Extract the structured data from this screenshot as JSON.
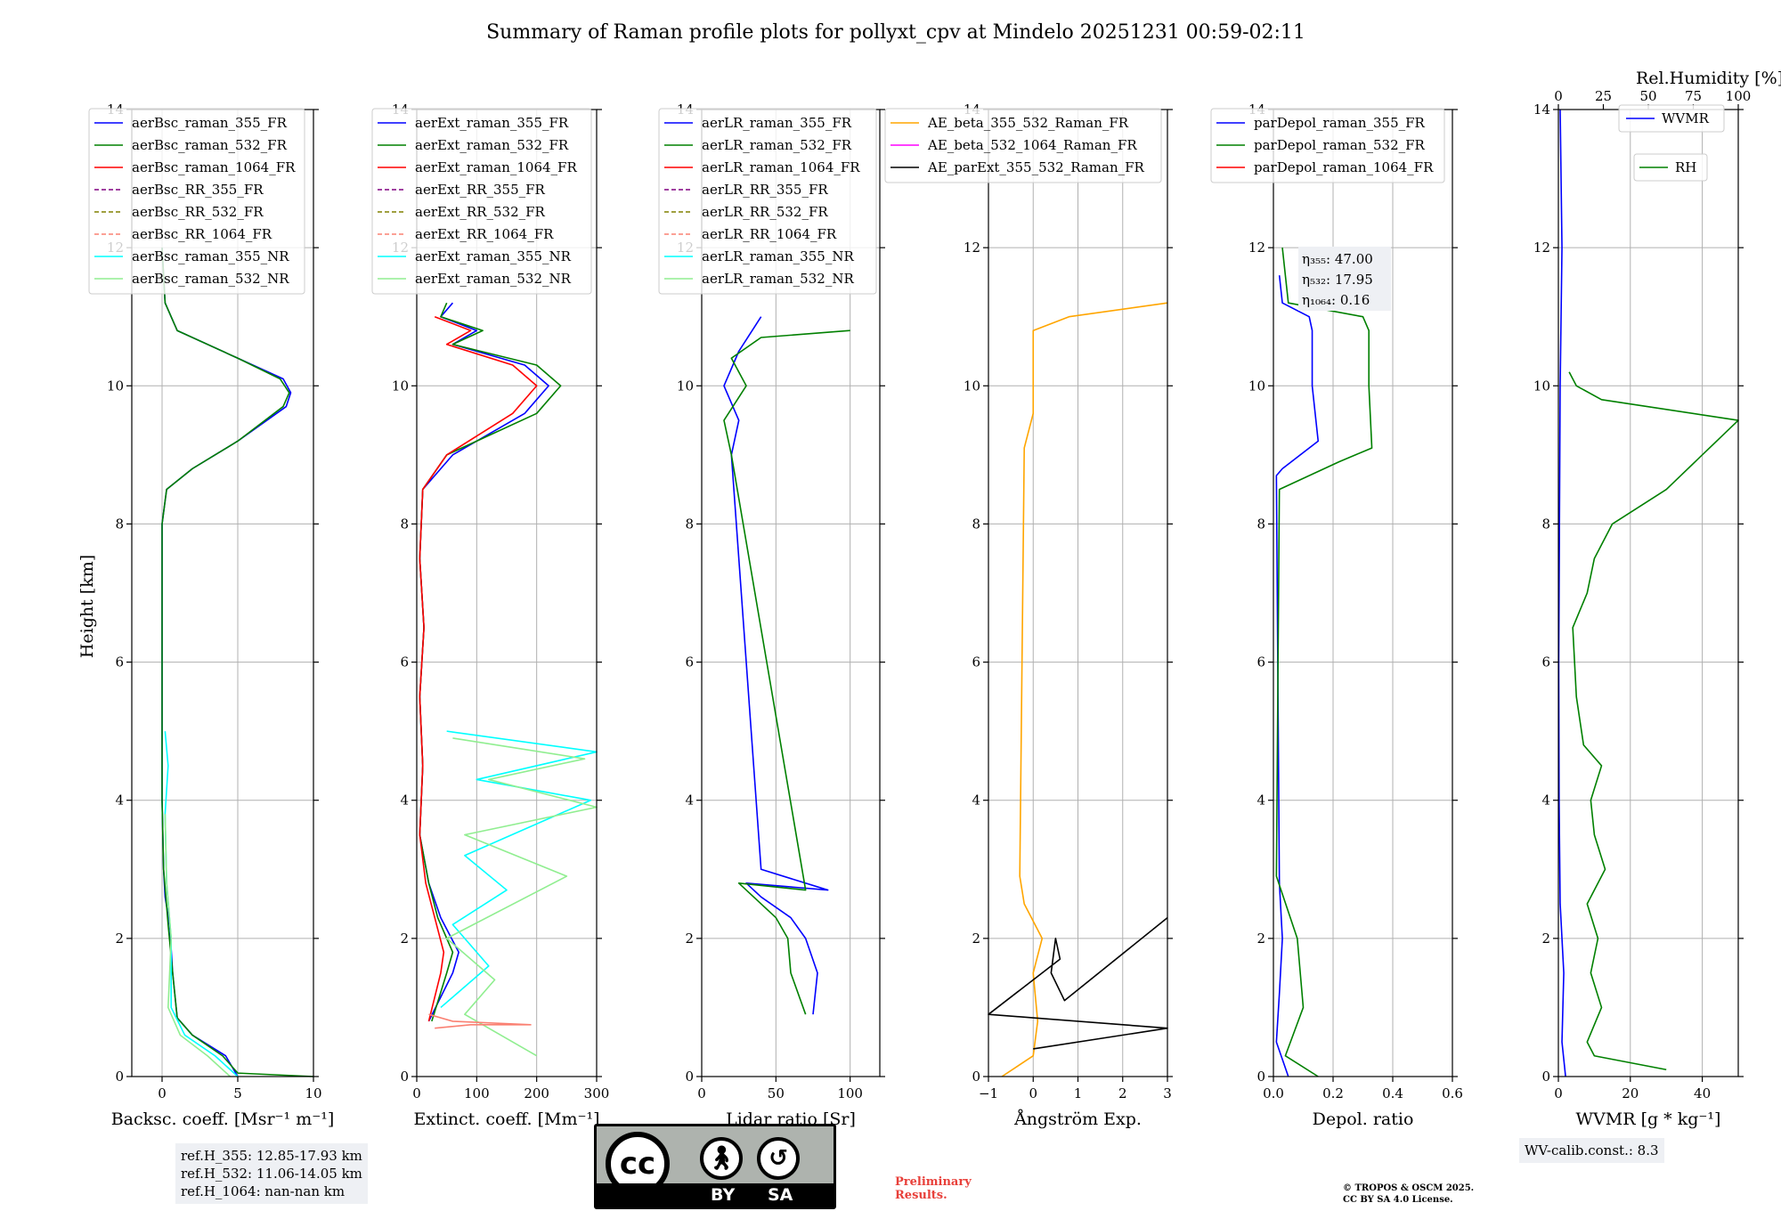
{
  "title": "Summary of Raman profile plots for pollyxt_cpv at Mindelo 20251231 00:59-02:11",
  "y_axis_label": "Height [km]",
  "rh_axis_label": "Rel.Humidity [%]",
  "chart_data": [
    {
      "type": "line",
      "xlabel": "Backsc. coeff. [Msr⁻¹ m⁻¹]",
      "xlim": [
        -2,
        10
      ],
      "ylim": [
        0,
        14
      ],
      "xticks": [
        0,
        5,
        10
      ],
      "yticks": [
        0,
        2,
        4,
        6,
        8,
        10,
        12,
        14
      ],
      "legend": [
        "aerBsc_raman_355_FR",
        "aerBsc_raman_532_FR",
        "aerBsc_raman_1064_FR",
        "aerBsc_RR_355_FR",
        "aerBsc_RR_532_FR",
        "aerBsc_RR_1064_FR",
        "aerBsc_raman_355_NR",
        "aerBsc_raman_532_NR"
      ],
      "series": [
        {
          "name": "aerBsc_raman_355_FR",
          "color": "#0000ff",
          "x": [
            5,
            4.2,
            2,
            1,
            0.7,
            0.5,
            0.2,
            0.1,
            0,
            0,
            0,
            0.3,
            2,
            5,
            8.2,
            8.5,
            8,
            5,
            1,
            0.2,
            0
          ],
          "y": [
            0,
            0.3,
            0.6,
            0.85,
            1.5,
            2.2,
            2.6,
            3,
            4,
            6,
            8,
            8.5,
            8.8,
            9.2,
            9.7,
            9.9,
            10.1,
            10.4,
            10.8,
            11.2,
            12
          ]
        },
        {
          "name": "aerBsc_raman_532_FR",
          "color": "#008000",
          "x": [
            10,
            5,
            4,
            2,
            1,
            0.7,
            0.4,
            0.1,
            0,
            0,
            0,
            0.3,
            2,
            5,
            8,
            8.4,
            7.8,
            5,
            1,
            0.2,
            0
          ],
          "y": [
            0,
            0.05,
            0.3,
            0.6,
            0.85,
            1.5,
            2.2,
            3,
            4,
            6,
            8,
            8.5,
            8.8,
            9.2,
            9.7,
            9.9,
            10.1,
            10.4,
            10.8,
            11.2,
            12
          ]
        },
        {
          "name": "aerBsc_raman_355_NR",
          "color": "#00ffff",
          "x": [
            5,
            3.5,
            1.5,
            0.6,
            0.6,
            0.3,
            0.2,
            0.4,
            0.2
          ],
          "y": [
            0,
            0.3,
            0.6,
            1.0,
            2.0,
            2.8,
            3.8,
            4.5,
            5.0
          ]
        },
        {
          "name": "aerBsc_raman_532_NR",
          "color": "#90ee90",
          "x": [
            4.5,
            3,
            1.2,
            0.4,
            0.6,
            0.3,
            0.2
          ],
          "y": [
            0,
            0.3,
            0.6,
            1.0,
            2.0,
            2.8,
            3.8
          ]
        }
      ],
      "info_box": [
        "ref.H_355: 12.85-17.93 km",
        "ref.H_532: 11.06-14.05 km",
        "ref.H_1064: nan-nan km"
      ]
    },
    {
      "type": "line",
      "xlabel": "Extinct. coeff. [Mm⁻¹]",
      "xlim": [
        0,
        300
      ],
      "ylim": [
        0,
        14
      ],
      "xticks": [
        0,
        100,
        200,
        300
      ],
      "legend": [
        "aerExt_raman_355_FR",
        "aerExt_raman_532_FR",
        "aerExt_raman_1064_FR",
        "aerExt_RR_355_FR",
        "aerExt_RR_532_FR",
        "aerExt_RR_1064_FR",
        "aerExt_raman_355_NR",
        "aerExt_raman_532_NR"
      ],
      "series": [
        {
          "name": "aerExt_raman_355_FR",
          "color": "#0000ff",
          "x": [
            20,
            60,
            70,
            40,
            20,
            5,
            10,
            5,
            12,
            5,
            10,
            60,
            180,
            220,
            180,
            60,
            100,
            40,
            60
          ],
          "y": [
            0.8,
            1.5,
            1.8,
            2.3,
            2.8,
            3.5,
            4.5,
            5.5,
            6.5,
            7.5,
            8.5,
            9.0,
            9.6,
            10.0,
            10.3,
            10.6,
            10.8,
            11.0,
            11.2
          ]
        },
        {
          "name": "aerExt_raman_532_FR",
          "color": "#008000",
          "x": [
            25,
            50,
            60,
            35,
            20,
            5,
            10,
            5,
            12,
            5,
            10,
            50,
            200,
            240,
            200,
            60,
            110,
            40,
            50
          ],
          "y": [
            0.8,
            1.5,
            1.8,
            2.3,
            2.8,
            3.5,
            4.5,
            5.5,
            6.5,
            7.5,
            8.5,
            9.0,
            9.6,
            10.0,
            10.3,
            10.6,
            10.8,
            11.0,
            11.2
          ]
        },
        {
          "name": "aerExt_raman_1064_FR",
          "color": "#ff0000",
          "x": [
            20,
            40,
            45,
            30,
            15,
            5,
            10,
            5,
            12,
            5,
            10,
            50,
            160,
            200,
            160,
            50,
            90,
            30
          ],
          "y": [
            0.8,
            1.5,
            1.8,
            2.3,
            2.8,
            3.5,
            4.5,
            5.5,
            6.5,
            7.5,
            8.5,
            9.0,
            9.6,
            10.0,
            10.3,
            10.6,
            10.8,
            11.0
          ]
        },
        {
          "name": "aerExt_raman_355_NR",
          "color": "#00ffff",
          "x": [
            40,
            120,
            60,
            150,
            80,
            290,
            100,
            300,
            50
          ],
          "y": [
            1.0,
            1.6,
            2.2,
            2.7,
            3.2,
            4.0,
            4.3,
            4.7,
            5.0
          ]
        },
        {
          "name": "aerExt_raman_532_NR",
          "color": "#90ee90",
          "x": [
            200,
            80,
            130,
            50,
            250,
            80,
            300,
            120,
            280,
            60
          ],
          "y": [
            0.3,
            0.9,
            1.4,
            2.0,
            2.9,
            3.5,
            3.9,
            4.3,
            4.6,
            4.9
          ]
        },
        {
          "name": "aerExt_RR_1064_FR",
          "color": "#fa8072",
          "x": [
            30,
            90,
            190,
            60,
            20
          ],
          "y": [
            0.7,
            0.75,
            0.75,
            0.8,
            0.9
          ]
        }
      ]
    },
    {
      "type": "line",
      "xlabel": "Lidar ratio [Sr]",
      "xlim": [
        0,
        120
      ],
      "ylim": [
        0,
        14
      ],
      "xticks": [
        0,
        50,
        100
      ],
      "legend": [
        "aerLR_raman_355_FR",
        "aerLR_raman_532_FR",
        "aerLR_raman_1064_FR",
        "aerLR_RR_355_FR",
        "aerLR_RR_532_FR",
        "aerLR_RR_1064_FR",
        "aerLR_raman_355_NR",
        "aerLR_raman_532_NR"
      ],
      "series": [
        {
          "name": "aerLR_raman_355_FR",
          "color": "#0000ff",
          "x": [
            75,
            78,
            70,
            60,
            40,
            30,
            85,
            40,
            20,
            25,
            15,
            25,
            40
          ],
          "y": [
            0.9,
            1.5,
            2.0,
            2.3,
            2.6,
            2.8,
            2.7,
            3.0,
            9.0,
            9.5,
            10.0,
            10.5,
            11.0
          ]
        },
        {
          "name": "aerLR_raman_532_FR",
          "color": "#008000",
          "x": [
            70,
            60,
            58,
            50,
            35,
            25,
            70,
            20,
            15,
            30,
            20,
            40,
            100
          ],
          "y": [
            0.9,
            1.5,
            2.0,
            2.3,
            2.6,
            2.8,
            2.7,
            9.0,
            9.5,
            10.0,
            10.4,
            10.7,
            10.8
          ]
        }
      ]
    },
    {
      "type": "line",
      "xlabel": "Ångström Exp.",
      "xlim": [
        -1,
        3
      ],
      "ylim": [
        0,
        14
      ],
      "xticks": [
        -1,
        0,
        1,
        2,
        3
      ],
      "legend": [
        "AE_beta_355_532_Raman_FR",
        "AE_beta_532_1064_Raman_FR",
        "AE_parExt_355_532_Raman_FR"
      ],
      "series": [
        {
          "name": "AE_beta_355_532_Raman_FR",
          "color": "#ffa500",
          "x": [
            -0.7,
            0,
            0.1,
            0,
            0.2,
            -0.2,
            -0.3,
            -0.2,
            0,
            0,
            0.8,
            3
          ],
          "y": [
            0,
            0.3,
            0.8,
            1.5,
            2.0,
            2.5,
            2.9,
            9.1,
            9.6,
            10.8,
            11.0,
            11.2
          ]
        },
        {
          "name": "AE_beta_532_1064_Raman_FR",
          "color": "#ff00ff",
          "x": [],
          "y": []
        },
        {
          "name": "AE_parExt_355_532_Raman_FR",
          "color": "#000000",
          "x": [
            0,
            3,
            -1,
            0.6,
            0.5,
            0.4,
            0.7,
            3
          ],
          "y": [
            0.4,
            0.7,
            0.9,
            1.7,
            2.0,
            1.5,
            1.1,
            2.3
          ]
        }
      ],
      "legend_colors": [
        "#ffa500",
        "#ff00ff",
        "#000000"
      ]
    },
    {
      "type": "line",
      "xlabel": "Depol. ratio",
      "xlim": [
        0,
        0.6
      ],
      "ylim": [
        0,
        14
      ],
      "xticks": [
        0.0,
        0.2,
        0.4,
        0.6
      ],
      "legend": [
        "parDepol_raman_355_FR",
        "parDepol_raman_532_FR",
        "parDepol_raman_1064_FR"
      ],
      "annotations": [
        "η₃₅₅: 47.00",
        "η₅₃₂: 17.95",
        "η₁₀₆₄: 0.16"
      ],
      "series": [
        {
          "name": "parDepol_raman_355_FR",
          "color": "#0000ff",
          "x": [
            0.05,
            0.01,
            0.02,
            0.03,
            0.02,
            0.01,
            0.03,
            0.15,
            0.13,
            0.13,
            0.12,
            0.03,
            0.02
          ],
          "y": [
            0,
            0.5,
            1.2,
            2.0,
            2.8,
            8.7,
            8.8,
            9.2,
            10.0,
            10.8,
            11.0,
            11.2,
            11.6
          ]
        },
        {
          "name": "parDepol_raman_532_FR",
          "color": "#008000",
          "x": [
            0.15,
            0.04,
            0.1,
            0.08,
            0.01,
            0.02,
            0.22,
            0.33,
            0.32,
            0.32,
            0.3,
            0.05,
            0.03
          ],
          "y": [
            0,
            0.3,
            1.0,
            2.0,
            2.9,
            8.5,
            8.9,
            9.1,
            10.0,
            10.8,
            11.0,
            11.2,
            12.0
          ]
        }
      ]
    },
    {
      "type": "line",
      "xlabel": "WVMR [g * kg⁻¹]",
      "xlim": [
        0,
        50
      ],
      "ylim": [
        0,
        14
      ],
      "xticks": [
        0,
        20,
        40
      ],
      "top_axis": {
        "label": "Rel.Humidity [%]",
        "xlim": [
          0,
          100
        ],
        "xticks": [
          0,
          25,
          50,
          75,
          100
        ]
      },
      "legend": [
        "WVMR",
        "RH"
      ],
      "series": [
        {
          "name": "WVMR",
          "color": "#0000ff",
          "x": [
            2,
            1,
            1.5,
            0.5,
            0.2,
            0.1,
            0.3,
            0.5,
            1,
            0.5
          ],
          "y": [
            0,
            0.5,
            1.5,
            2.5,
            4,
            6,
            8,
            10,
            12,
            14
          ]
        },
        {
          "name": "RH",
          "color": "#008000",
          "x": [
            30,
            10,
            8,
            12,
            9,
            11,
            8,
            13,
            10,
            9,
            12,
            7,
            5,
            4,
            8,
            10,
            15,
            30,
            40,
            50,
            12,
            5,
            3
          ],
          "y": [
            0.1,
            0.3,
            0.5,
            1.0,
            1.5,
            2.0,
            2.5,
            3.0,
            3.5,
            4.0,
            4.5,
            4.8,
            5.5,
            6.5,
            7.0,
            7.5,
            8.0,
            8.5,
            9.0,
            9.5,
            9.8,
            10.0,
            10.2
          ]
        }
      ],
      "info_box": [
        "WV-calib.const.: 8.3"
      ]
    }
  ],
  "license": {
    "by": "BY",
    "sa": "SA",
    "cc": "cc"
  },
  "preliminary": [
    "Preliminary",
    "Results."
  ],
  "copyright": [
    "© TROPOS & OSCM 2025.",
    "CC BY SA 4.0 License."
  ]
}
